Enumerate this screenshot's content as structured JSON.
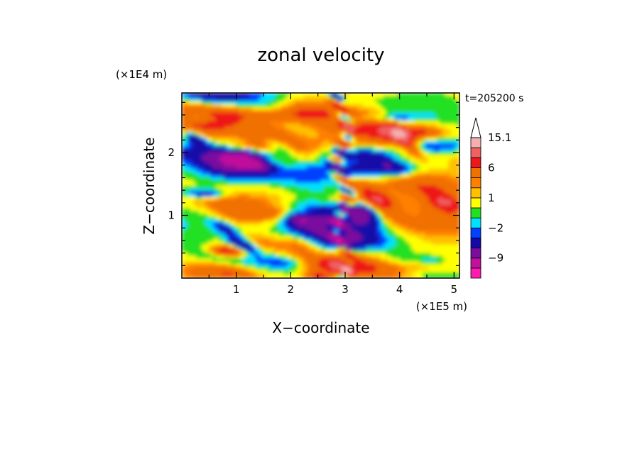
{
  "chart_data": {
    "type": "heatmap",
    "title": "zonal velocity",
    "xlabel": "X−coordinate",
    "ylabel": "Z−coordinate",
    "x_unit_label": "(×1E5 m)",
    "y_unit_label": "(×1E4 m)",
    "time_label": "t=205200 s",
    "xlim": [
      0,
      5.1
    ],
    "ylim": [
      0,
      2.95
    ],
    "x_ticks": [
      {
        "value": 1,
        "label": "1"
      },
      {
        "value": 2,
        "label": "2"
      },
      {
        "value": 3,
        "label": "3"
      },
      {
        "value": 4,
        "label": "4"
      },
      {
        "value": 5,
        "label": "5"
      }
    ],
    "y_ticks": [
      {
        "value": 1,
        "label": "1"
      },
      {
        "value": 2,
        "label": "2"
      }
    ],
    "colorbar": {
      "levels": [
        {
          "lo": -15,
          "hi": -12,
          "color": "#ff1ab0"
        },
        {
          "lo": -12,
          "hi": -9,
          "color": "#c0109c"
        },
        {
          "lo": -9,
          "hi": -6,
          "color": "#7a0c9e"
        },
        {
          "lo": -6,
          "hi": -3,
          "color": "#1408a8"
        },
        {
          "lo": -3,
          "hi": -2,
          "color": "#0040ff"
        },
        {
          "lo": -2,
          "hi": -1,
          "color": "#00e0ff"
        },
        {
          "lo": -1,
          "hi": 0,
          "color": "#22e020"
        },
        {
          "lo": 0,
          "hi": 1,
          "color": "#ffff00"
        },
        {
          "lo": 1,
          "hi": 2,
          "color": "#ffc000"
        },
        {
          "lo": 2,
          "hi": 3,
          "color": "#ff8000"
        },
        {
          "lo": 3,
          "hi": 6,
          "color": "#f07000"
        },
        {
          "lo": 6,
          "hi": 9,
          "color": "#ee1818"
        },
        {
          "lo": 9,
          "hi": 12,
          "color": "#f06060"
        },
        {
          "lo": 12,
          "hi": 15.1,
          "color": "#f4b0b0"
        }
      ],
      "extend_max": true,
      "tick_labels": [
        {
          "value": 15.1,
          "label": "15.1"
        },
        {
          "value": 6,
          "label": "6"
        },
        {
          "value": 1,
          "label": "1"
        },
        {
          "value": -2,
          "label": "−2"
        },
        {
          "value": -9,
          "label": "−9"
        }
      ]
    }
  }
}
